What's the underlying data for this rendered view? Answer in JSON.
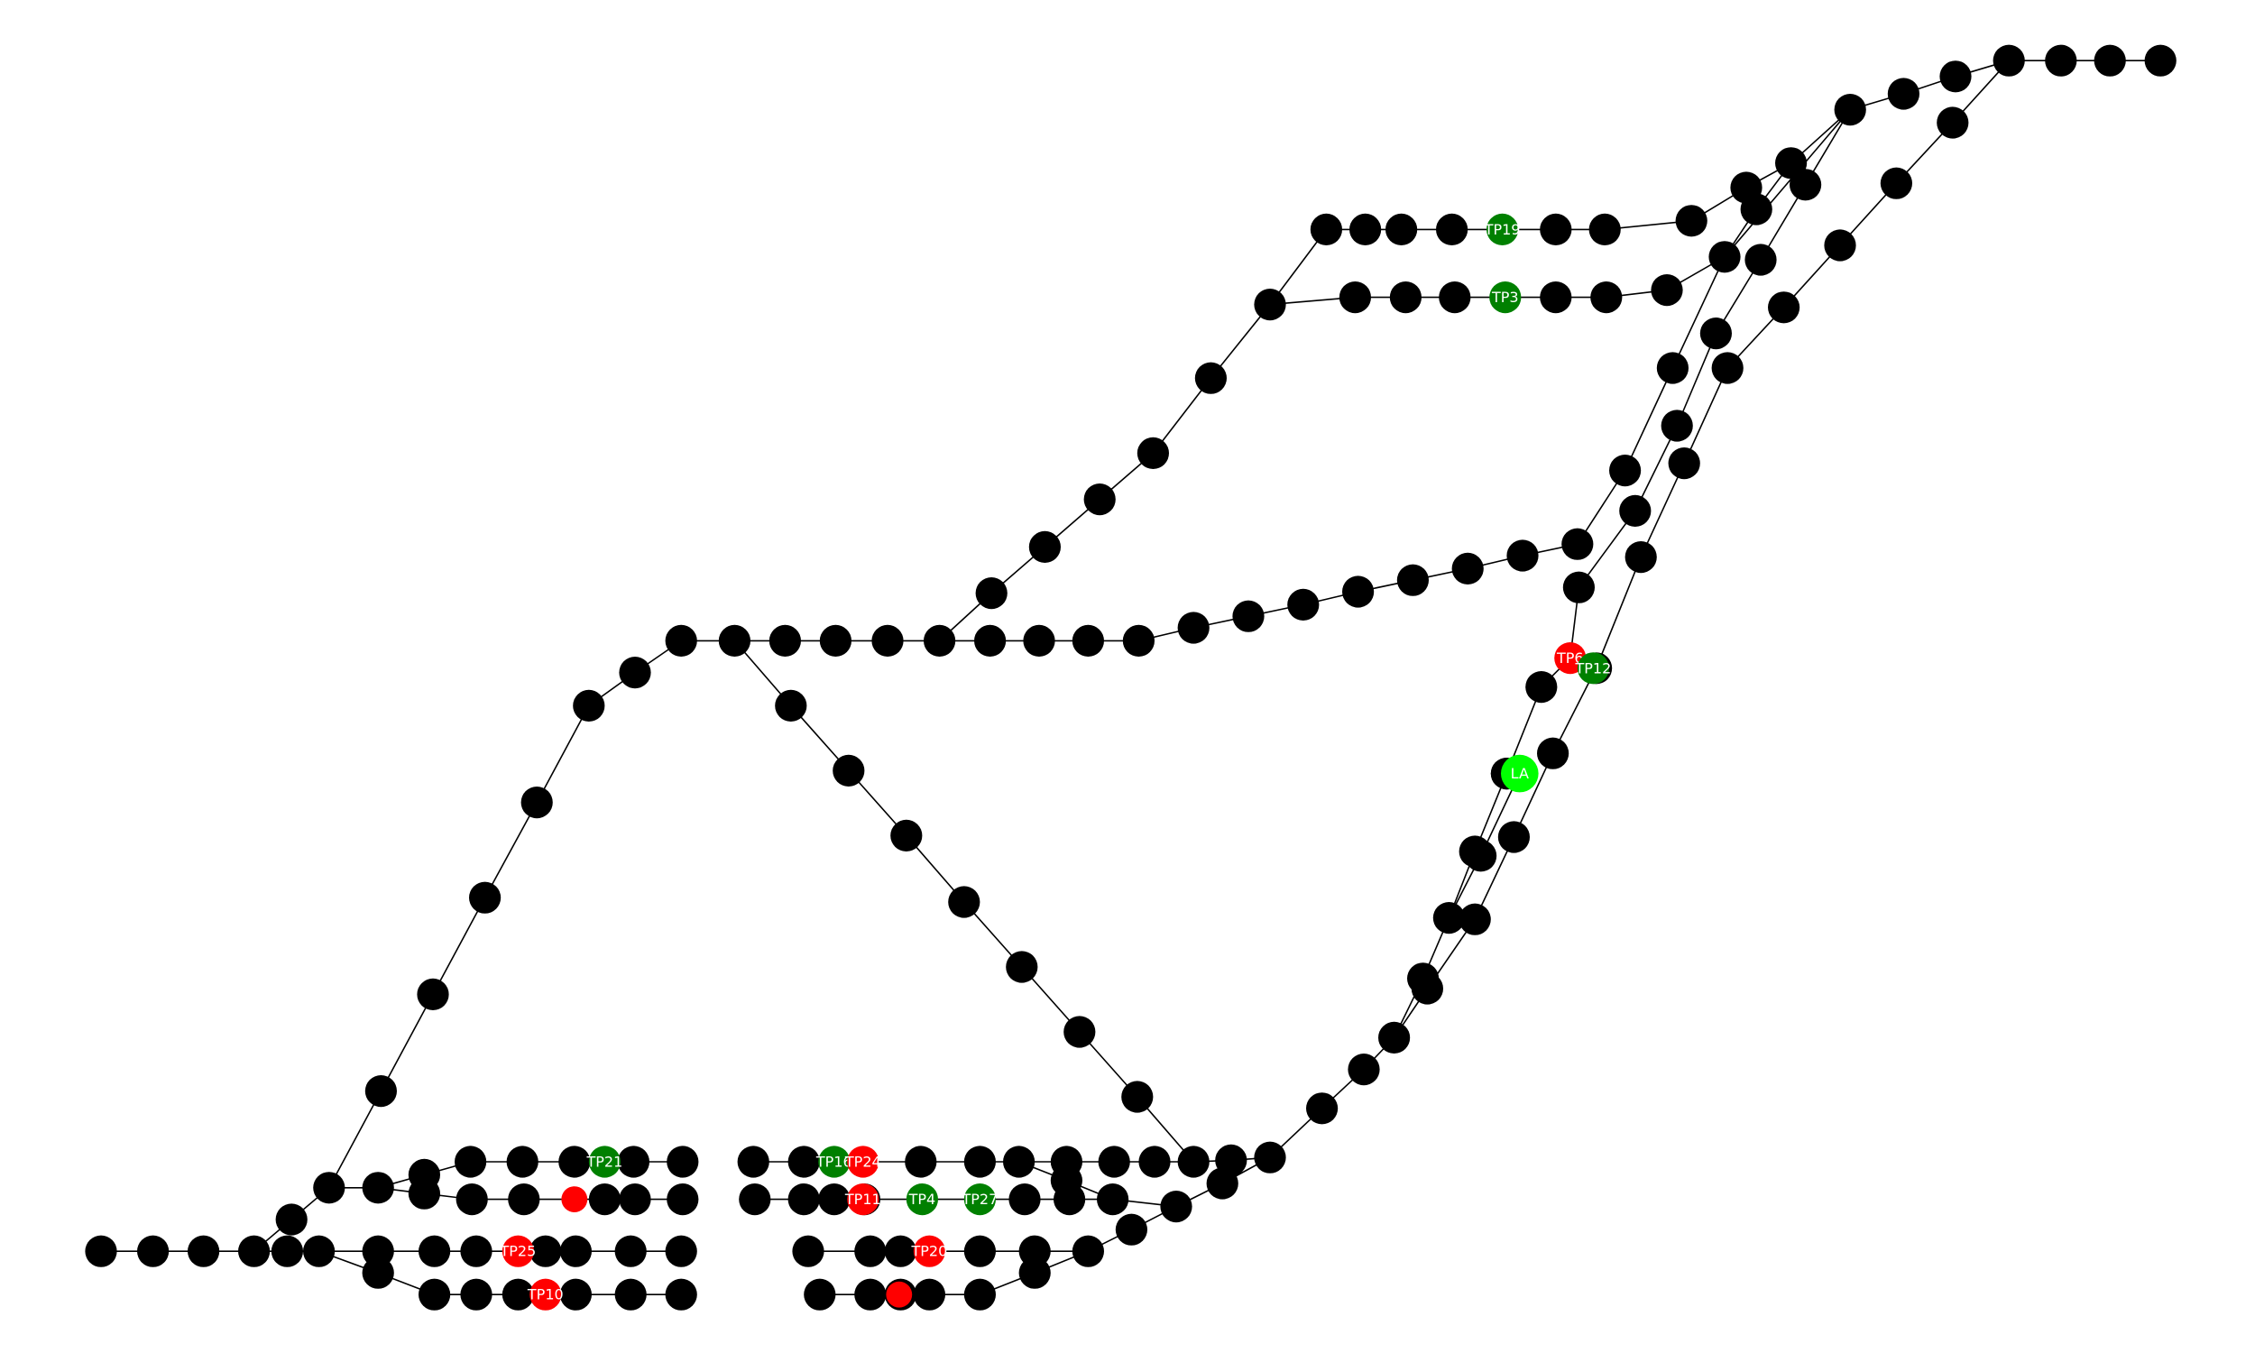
{
  "colors": {
    "background": "#ffffff",
    "edge": "#000000",
    "default_node": "#000000",
    "red_node": "#ff0000",
    "green_node": "#008000",
    "highlight_node": "#00ff00",
    "label_text": "#ffffff"
  },
  "labels": {
    "TP19": "TP19",
    "TP3": "TP3",
    "TP6": "TP6",
    "TP12": "TP12",
    "LA": "LA",
    "TP21": "TP21",
    "TP16": "TP16",
    "TP24": "TP24",
    "TP11": "TP11",
    "TP4": "TP4",
    "TP27": "TP27",
    "TP25": "TP25",
    "TP20": "TP20",
    "TP10": "TP10"
  }
}
